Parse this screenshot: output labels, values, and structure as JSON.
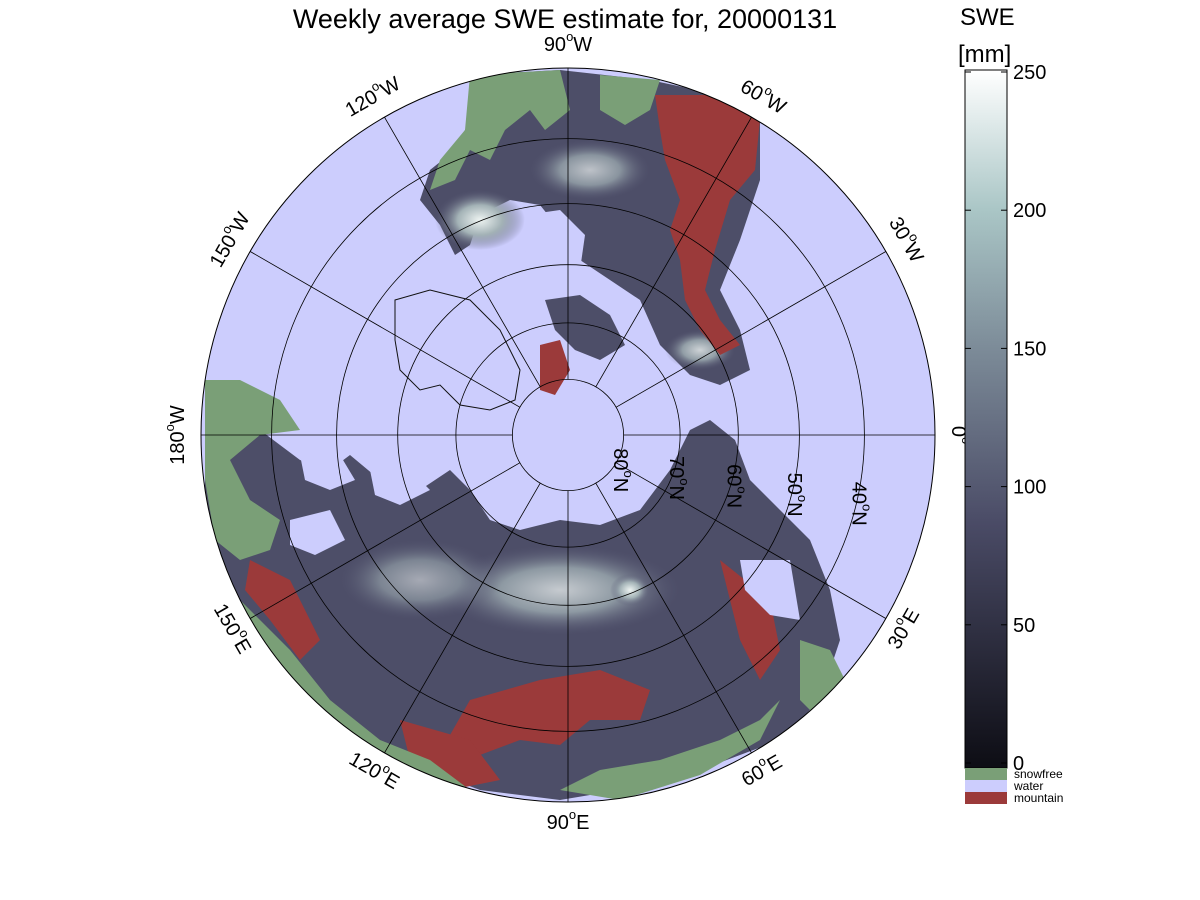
{
  "title": "Weekly average SWE estimate for, 20000131",
  "colorbar": {
    "heading_line1": "SWE",
    "heading_line2": "[mm]",
    "ticks": [
      "0",
      "50",
      "100",
      "150",
      "200",
      "250"
    ],
    "tick_values": [
      0,
      50,
      100,
      150,
      200,
      250
    ],
    "range": [
      0,
      250
    ],
    "gradient_low": "#0d0d14",
    "gradient_mid": "#6f7092",
    "gradient_high": "#ffffff"
  },
  "legend": [
    {
      "label": "snowfree",
      "color": "#7a9f77"
    },
    {
      "label": "water",
      "color": "#cccdfd"
    },
    {
      "label": "mountain",
      "color": "#9b3a3a"
    }
  ],
  "map": {
    "projection": "north polar stereographic",
    "ocean_color": "#cccdfd",
    "longitude_labels": [
      {
        "base": "90",
        "sup": "o",
        "suf": "W",
        "lon": 90,
        "hemi": "W"
      },
      {
        "base": "120",
        "sup": "o",
        "suf": "W",
        "lon": 120,
        "hemi": "W"
      },
      {
        "base": "150",
        "sup": "o",
        "suf": "W",
        "lon": 150,
        "hemi": "W"
      },
      {
        "base": "180",
        "sup": "o",
        "suf": "W",
        "lon": 180,
        "hemi": "W"
      },
      {
        "base": "150",
        "sup": "o",
        "suf": "E",
        "lon": 150,
        "hemi": "E"
      },
      {
        "base": "120",
        "sup": "o",
        "suf": "E",
        "lon": 120,
        "hemi": "E"
      },
      {
        "base": "90",
        "sup": "o",
        "suf": "E",
        "lon": 90,
        "hemi": "E"
      },
      {
        "base": "60",
        "sup": "o",
        "suf": "E",
        "lon": 60,
        "hemi": "E"
      },
      {
        "base": "30",
        "sup": "o",
        "suf": "E",
        "lon": 30,
        "hemi": "E"
      },
      {
        "base": "0",
        "sup": "o",
        "suf": "",
        "lon": 0,
        "hemi": ""
      },
      {
        "base": "30",
        "sup": "o",
        "suf": "W",
        "lon": 30,
        "hemi": "W"
      },
      {
        "base": "60",
        "sup": "o",
        "suf": "W",
        "lon": 60,
        "hemi": "W"
      }
    ],
    "latitude_labels": [
      {
        "base": "80",
        "sup": "o",
        "suf": "N",
        "lat": 80
      },
      {
        "base": "70",
        "sup": "o",
        "suf": "N",
        "lat": 70
      },
      {
        "base": "60",
        "sup": "o",
        "suf": "N",
        "lat": 60
      },
      {
        "base": "50",
        "sup": "o",
        "suf": "N",
        "lat": 50
      },
      {
        "base": "40",
        "sup": "o",
        "suf": "N",
        "lat": 40
      }
    ]
  }
}
